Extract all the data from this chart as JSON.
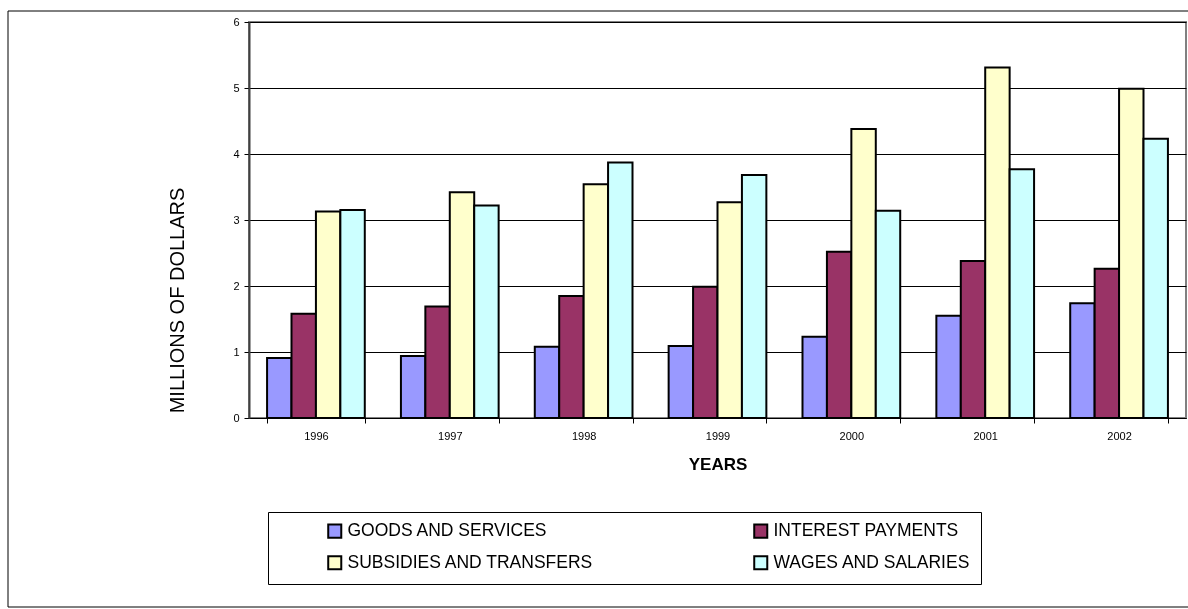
{
  "chart_data": {
    "type": "bar",
    "xlabel": "YEARS",
    "ylabel": "MILLIONS OF DOLLARS",
    "categories": [
      "1996",
      "1997",
      "1998",
      "1999",
      "2000",
      "2001",
      "2002"
    ],
    "series": [
      {
        "name": "GOODS AND SERVICES",
        "color": "#9999ff",
        "values": [
          0.91,
          0.94,
          1.08,
          1.09,
          1.23,
          1.55,
          1.74
        ]
      },
      {
        "name": "INTEREST PAYMENTS",
        "color": "#993366",
        "values": [
          1.58,
          1.69,
          1.85,
          1.99,
          2.52,
          2.38,
          2.26
        ]
      },
      {
        "name": "SUBSIDIES AND TRANSFERS",
        "color": "#ffffcc",
        "values": [
          3.13,
          3.42,
          3.54,
          3.27,
          4.38,
          5.31,
          4.99
        ]
      },
      {
        "name": "WAGES AND SALARIES",
        "color": "#ccffff",
        "values": [
          3.15,
          3.22,
          3.87,
          3.68,
          3.14,
          3.77,
          4.23
        ]
      }
    ],
    "ylim": [
      0,
      6
    ],
    "yticks": [
      0,
      1,
      2,
      3,
      4,
      5,
      6
    ],
    "grid": "y",
    "legend": "bottom"
  }
}
